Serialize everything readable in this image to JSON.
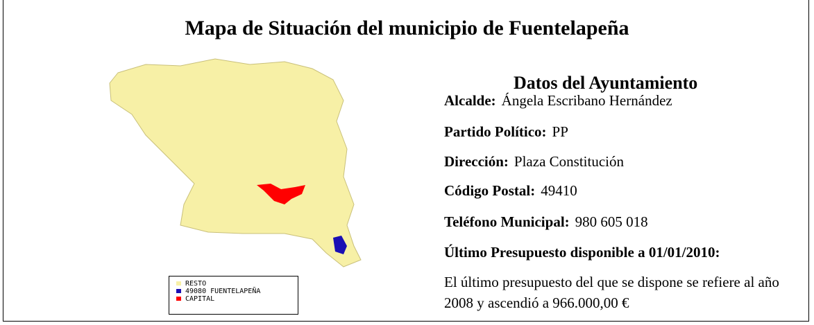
{
  "header": {
    "title": "Mapa de Situación del municipio de Fuentelapeña"
  },
  "map": {
    "legend": [
      "RESTO",
      "49080 FUENTELAPEÑA",
      "CAPITAL"
    ]
  },
  "section": {
    "title": "Datos del Ayuntamiento",
    "fields": [
      {
        "label": "Alcalde:",
        "value": "Ángela Escribano Hernández"
      },
      {
        "label": "Partido Político:",
        "value": "PP"
      },
      {
        "label": "Dirección:",
        "value": "Plaza Constitución"
      },
      {
        "label": "Código Postal:",
        "value": "49410"
      },
      {
        "label": "Teléfono Municipal:",
        "value": "980 605 018"
      }
    ],
    "budget_heading": "Último Presupuesto disponible a 01/01/2010:",
    "budget_text": "El último presupuesto del que se dispone se refiere al año 2008 y ascendió a 966.000,00 €"
  }
}
